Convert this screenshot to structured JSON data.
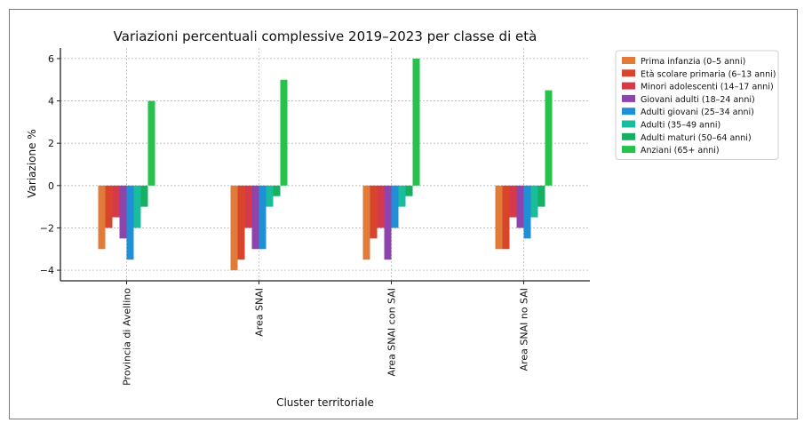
{
  "chart_data": {
    "type": "bar",
    "title": "Variazioni percentuali complessive 2019–2023 per classe di età",
    "xlabel": "Cluster territoriale",
    "ylabel": "Variazione %",
    "ylim": [
      -4.5,
      6.5
    ],
    "yticks": [
      "−4",
      "−2",
      "0",
      "2",
      "4",
      "6"
    ],
    "ytick_values": [
      -4,
      -2,
      0,
      2,
      4,
      6
    ],
    "grid": true,
    "legend_position": "right",
    "categories": [
      "Provincia di Avellino",
      "Area SNAI",
      "Area SNAI con SAI",
      "Area SNAI no SAI"
    ],
    "series": [
      {
        "name": "Prima infanzia (0–5 anni)",
        "color": "#e07b39",
        "values": [
          -3.0,
          -4.0,
          -3.5,
          -3.0
        ]
      },
      {
        "name": "Età scolare primaria (6–13 anni)",
        "color": "#d9452b",
        "values": [
          -2.0,
          -3.5,
          -2.5,
          -3.0
        ]
      },
      {
        "name": "Minori adolescenti (14–17 anni)",
        "color": "#d63a4a",
        "values": [
          -1.5,
          -2.0,
          -2.0,
          -1.5
        ]
      },
      {
        "name": "Giovani adulti (18–24 anni)",
        "color": "#8e44ad",
        "values": [
          -2.5,
          -3.0,
          -3.5,
          -2.0
        ]
      },
      {
        "name": "Adulti giovani (25–34 anni)",
        "color": "#1f8fd6",
        "values": [
          -3.5,
          -3.0,
          -2.0,
          -2.5
        ]
      },
      {
        "name": "Adulti (35–49 anni)",
        "color": "#1abc9c",
        "values": [
          -2.0,
          -1.0,
          -1.0,
          -1.5
        ]
      },
      {
        "name": "Adulti maturi (50–64 anni)",
        "color": "#16b060",
        "values": [
          -1.0,
          -0.5,
          -0.5,
          -1.0
        ]
      },
      {
        "name": "Anziani (65+ anni)",
        "color": "#27c24c",
        "values": [
          4.0,
          5.0,
          6.0,
          4.5
        ]
      }
    ]
  }
}
